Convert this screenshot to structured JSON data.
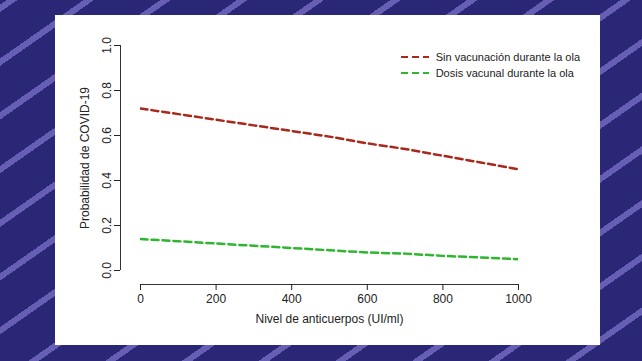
{
  "chart_data": {
    "type": "line",
    "x_label": "Nivel de anticuerpos (UI/ml)",
    "y_label": "Probabilidad de COVID-19",
    "x": [
      0,
      100,
      200,
      300,
      400,
      500,
      600,
      700,
      800,
      900,
      1000
    ],
    "series": [
      {
        "name": "Sin vacunación durante la ola",
        "color": "#a8281c",
        "line_style": "dashed",
        "values": [
          0.72,
          0.695,
          0.67,
          0.645,
          0.62,
          0.595,
          0.565,
          0.54,
          0.51,
          0.48,
          0.45
        ]
      },
      {
        "name": "Dosis vacunal durante la ola",
        "color": "#2fb52f",
        "line_style": "dashed",
        "values": [
          0.14,
          0.13,
          0.12,
          0.11,
          0.1,
          0.09,
          0.08,
          0.075,
          0.065,
          0.058,
          0.05
        ]
      }
    ],
    "xlim": [
      0,
      1000
    ],
    "xticks": [
      0,
      200,
      400,
      600,
      800,
      1000
    ],
    "ylim": [
      0,
      1
    ],
    "yticks": [
      {
        "value": 0,
        "label": "0.0"
      },
      0.2,
      0.4,
      0.6,
      0.8,
      {
        "value": 1,
        "label": "1.0"
      }
    ],
    "legend": "top-right",
    "grid": false
  }
}
